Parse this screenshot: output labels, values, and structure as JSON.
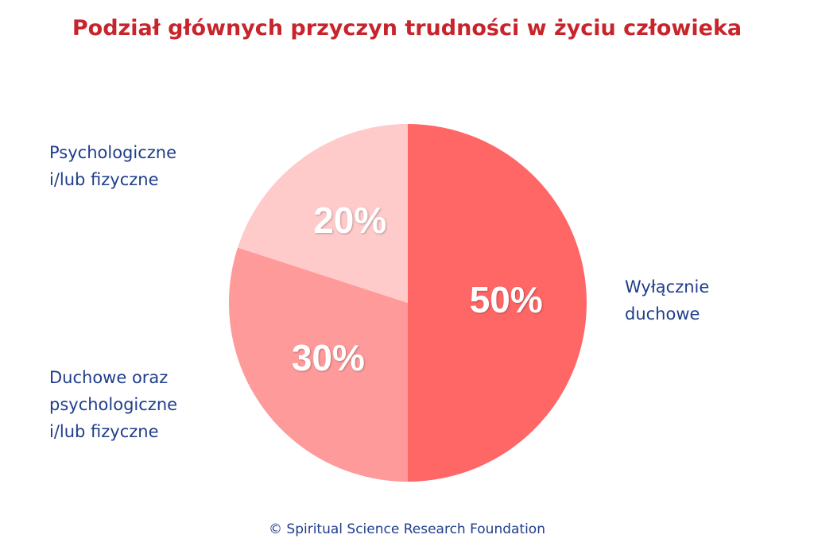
{
  "chart_data": {
    "type": "pie",
    "title": "Podział głównych przyczyn trudności w życiu człowieka",
    "categories": [
      "Wyłącznie duchowe",
      "Duchowe oraz psychologiczne i/lub fizyczne",
      "Psychologiczne i/lub fizyczne"
    ],
    "values": [
      50,
      30,
      20
    ],
    "value_labels": [
      "50%",
      "30%",
      "20%"
    ],
    "colors": [
      "#ff6666",
      "#ff9a9a",
      "#ffcaca"
    ],
    "source": "© Spiritual Science Research Foundation"
  }
}
